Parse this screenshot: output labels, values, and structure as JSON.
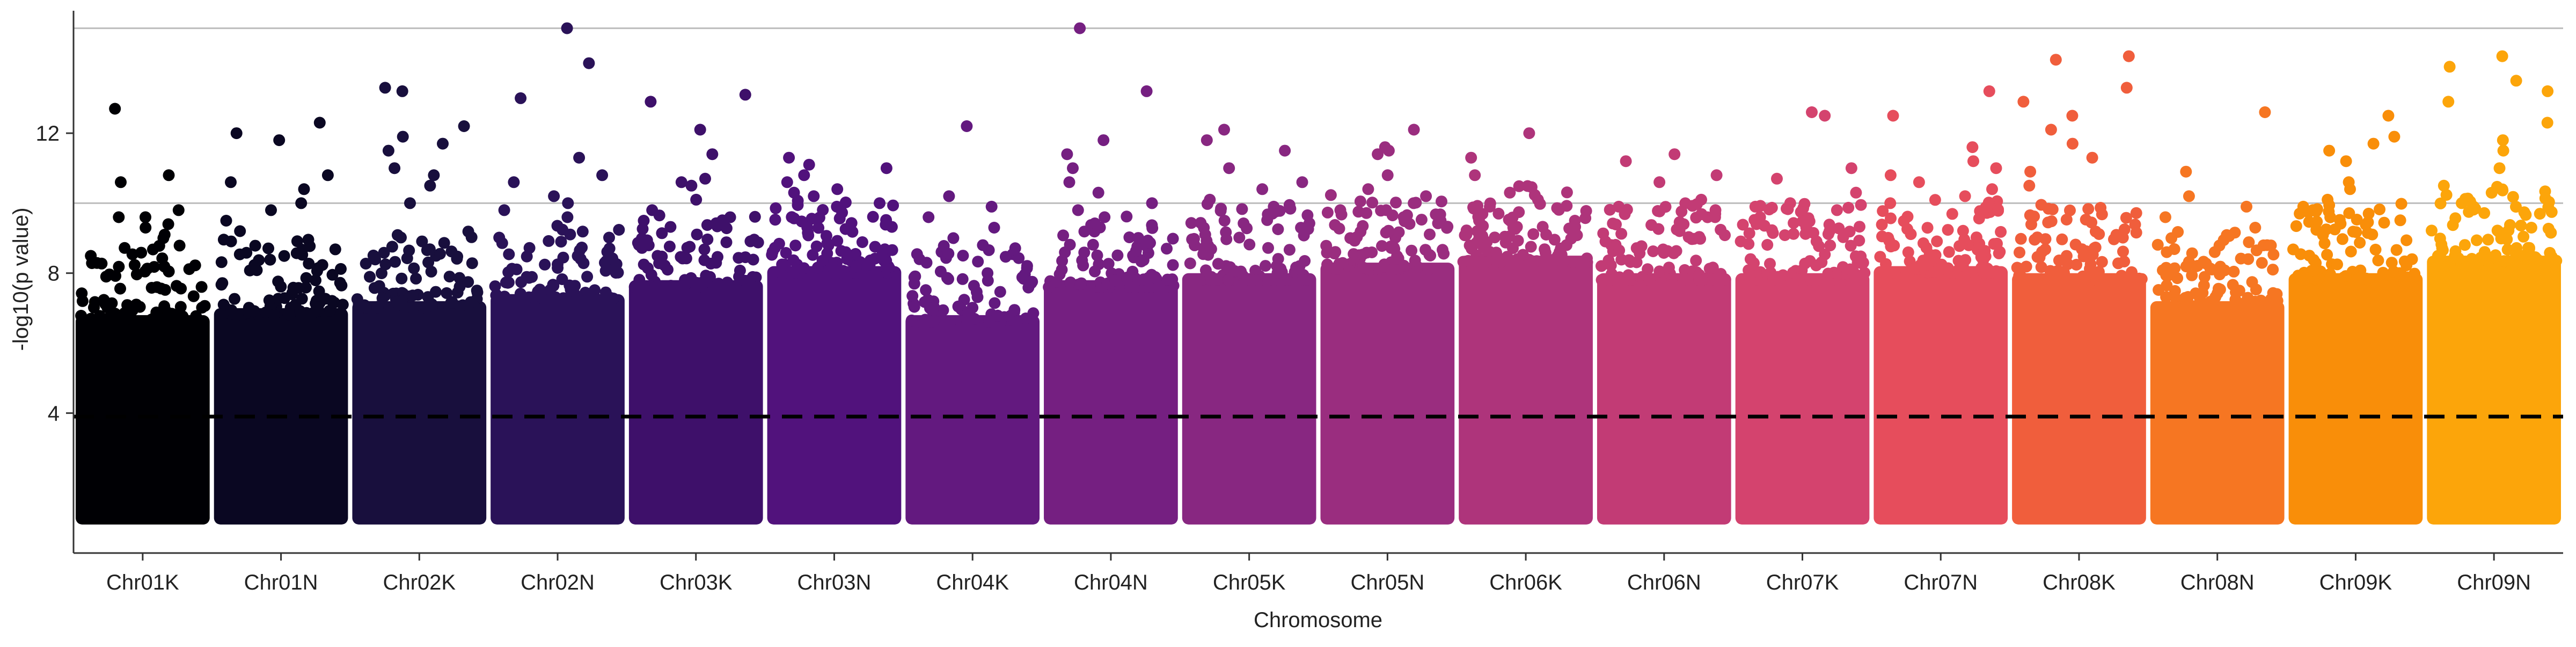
{
  "chart_data": {
    "type": "scatter",
    "title": "",
    "xlabel": "Chromosome",
    "ylabel": "-log10(p value)",
    "ylim": [
      0,
      15.5
    ],
    "y_ticks": [
      4,
      8,
      12
    ],
    "threshold_line": 3.9,
    "reference_lines": [
      10.0,
      15.0
    ],
    "grid": false,
    "legend": "none",
    "categories": [
      "Chr01K",
      "Chr01N",
      "Chr02K",
      "Chr02N",
      "Chr03K",
      "Chr03N",
      "Chr04K",
      "Chr04N",
      "Chr05K",
      "Chr05N",
      "Chr06K",
      "Chr06N",
      "Chr07K",
      "Chr07N",
      "Chr08K",
      "Chr08N",
      "Chr09K",
      "Chr09N"
    ],
    "colors": [
      "#000004",
      "#0a0722",
      "#180f3d",
      "#2a1258",
      "#3e106a",
      "#51127c",
      "#63197f",
      "#751f81",
      "#882781",
      "#9a2d7f",
      "#ae347b",
      "#c23b75",
      "#d4436e",
      "#e64d5c",
      "#f05e3c",
      "#f67622",
      "#f98e09",
      "#fca50a"
    ],
    "min_y": 1.0,
    "baseline_top": [
      6.8,
      7.0,
      7.2,
      7.4,
      7.8,
      8.2,
      6.8,
      7.8,
      8.0,
      8.3,
      8.5,
      8.0,
      8.0,
      8.2,
      8.0,
      7.2,
      8.0,
      8.5
    ],
    "top_points": [
      {
        "chr": "Chr01K",
        "y": [
          12.7,
          10.8,
          10.6,
          9.8,
          9.6,
          9.6,
          9.4,
          9.3,
          9.1,
          9.0
        ]
      },
      {
        "chr": "Chr01N",
        "y": [
          12.3,
          12.0,
          11.8,
          10.8,
          10.6,
          10.4,
          10.0,
          9.8,
          9.5,
          9.2
        ]
      },
      {
        "chr": "Chr02K",
        "y": [
          13.3,
          13.2,
          12.2,
          11.9,
          11.7,
          11.5,
          11.0,
          10.8,
          10.5,
          10.0
        ]
      },
      {
        "chr": "Chr02N",
        "y": [
          15.0,
          14.0,
          13.0,
          11.3,
          10.8,
          10.6,
          10.2,
          10.0,
          9.8,
          9.6
        ]
      },
      {
        "chr": "Chr03K",
        "y": [
          13.1,
          12.9,
          12.1,
          11.4,
          10.7,
          10.6,
          10.5,
          10.1,
          9.8,
          9.5
        ]
      },
      {
        "chr": "Chr03N",
        "y": [
          11.3,
          11.1,
          11.0,
          10.8,
          10.6,
          10.4,
          10.3,
          10.2,
          10.0,
          9.9
        ]
      },
      {
        "chr": "Chr04K",
        "y": [
          12.2,
          10.2,
          9.9,
          9.6,
          9.3,
          9.0,
          8.8,
          8.5,
          8.3,
          8.0
        ]
      },
      {
        "chr": "Chr04N",
        "y": [
          15.0,
          13.2,
          11.8,
          11.4,
          11.0,
          10.6,
          10.3,
          10.0,
          9.8,
          9.6
        ]
      },
      {
        "chr": "Chr05K",
        "y": [
          12.1,
          11.8,
          11.5,
          11.0,
          10.6,
          10.4,
          10.1,
          9.9,
          9.7,
          9.5
        ]
      },
      {
        "chr": "Chr05N",
        "y": [
          12.1,
          11.6,
          11.5,
          11.4,
          10.8,
          10.4,
          10.2,
          10.0,
          9.8,
          9.6
        ]
      },
      {
        "chr": "Chr06K",
        "y": [
          12.0,
          11.3,
          10.8,
          10.3,
          10.1,
          9.9,
          9.7,
          9.5,
          9.3,
          9.1
        ]
      },
      {
        "chr": "Chr06N",
        "y": [
          11.4,
          11.2,
          10.8,
          10.6,
          10.1,
          9.9,
          9.8,
          9.6,
          9.4,
          9.2
        ]
      },
      {
        "chr": "Chr07K",
        "y": [
          12.6,
          12.5,
          11.0,
          10.7,
          10.3,
          10.0,
          9.8,
          9.6,
          9.4,
          9.2
        ]
      },
      {
        "chr": "Chr07N",
        "y": [
          13.2,
          12.5,
          11.6,
          11.2,
          11.0,
          10.8,
          10.6,
          10.4,
          10.2,
          10.0
        ]
      },
      {
        "chr": "Chr08K",
        "y": [
          14.2,
          14.1,
          13.3,
          12.9,
          12.5,
          12.1,
          11.7,
          11.3,
          10.9,
          10.5
        ]
      },
      {
        "chr": "Chr08N",
        "y": [
          12.6,
          10.9,
          10.2,
          9.9,
          9.6,
          9.3,
          9.0,
          8.8,
          8.6,
          8.4
        ]
      },
      {
        "chr": "Chr09K",
        "y": [
          12.5,
          11.9,
          11.7,
          11.5,
          11.2,
          10.6,
          10.4,
          10.1,
          9.9,
          9.7
        ]
      },
      {
        "chr": "Chr09N",
        "y": [
          14.2,
          13.9,
          13.5,
          13.2,
          12.9,
          12.3,
          11.8,
          11.5,
          11.0,
          10.5
        ]
      }
    ]
  }
}
